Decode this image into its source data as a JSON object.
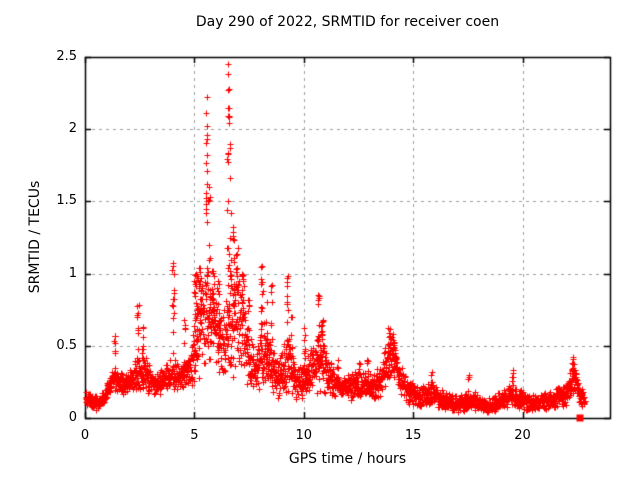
{
  "window": {
    "background": "#ffffff",
    "foreground": "#000000"
  },
  "chart_data": {
    "type": "scatter",
    "title": "Day 290 of 2022, SRMTID for receiver coen",
    "xlabel": "GPS time / hours",
    "ylabel": "SRMTID / TECUs",
    "xlim": [
      0,
      24
    ],
    "ylim": [
      0,
      2.5
    ],
    "xticks": [
      0,
      5,
      10,
      15,
      20
    ],
    "yticks": [
      0,
      0.5,
      1,
      1.5,
      2,
      2.5
    ],
    "grid": {
      "show": true,
      "style": "dashed",
      "color": "#a0a0a0"
    },
    "border_color": "#000000",
    "legend": "none",
    "marker": {
      "glyph": "plus",
      "color": "#ff0000",
      "size": 6
    },
    "description": "Dense time series of SRMTID values sampled through the day; quiet baseline ~0.1-0.3 TECUs with wave activity bursts between 5 and 11 hours peaking at 2.43 TECUs near 6.6 h, a secondary peak ~0.6 near 14 h, and a quiet tail after 15 h.",
    "sampling": {
      "seed": 20220290,
      "samples_per_hour": 110,
      "x_start": 0.03,
      "x_end": 22.85
    },
    "envelope_keyframes": [
      [
        0.0,
        0.14,
        0.06
      ],
      [
        0.3,
        0.12,
        0.06
      ],
      [
        0.6,
        0.09,
        0.05
      ],
      [
        0.9,
        0.16,
        0.07
      ],
      [
        1.2,
        0.24,
        0.1
      ],
      [
        1.5,
        0.27,
        0.1
      ],
      [
        1.8,
        0.22,
        0.08
      ],
      [
        2.1,
        0.26,
        0.09
      ],
      [
        2.4,
        0.31,
        0.13
      ],
      [
        2.7,
        0.33,
        0.14
      ],
      [
        3.0,
        0.25,
        0.1
      ],
      [
        3.3,
        0.22,
        0.09
      ],
      [
        3.6,
        0.28,
        0.1
      ],
      [
        3.9,
        0.3,
        0.12
      ],
      [
        4.2,
        0.31,
        0.12
      ],
      [
        4.5,
        0.3,
        0.1
      ],
      [
        4.8,
        0.35,
        0.14
      ],
      [
        5.1,
        0.55,
        0.35
      ],
      [
        5.4,
        0.7,
        0.33
      ],
      [
        5.7,
        0.72,
        0.35
      ],
      [
        6.0,
        0.6,
        0.3
      ],
      [
        6.3,
        0.5,
        0.28
      ],
      [
        6.6,
        0.6,
        0.38
      ],
      [
        6.9,
        0.66,
        0.4
      ],
      [
        7.2,
        0.6,
        0.35
      ],
      [
        7.5,
        0.38,
        0.2
      ],
      [
        7.8,
        0.32,
        0.16
      ],
      [
        8.1,
        0.42,
        0.28
      ],
      [
        8.4,
        0.38,
        0.26
      ],
      [
        8.7,
        0.3,
        0.15
      ],
      [
        9.0,
        0.32,
        0.2
      ],
      [
        9.3,
        0.38,
        0.26
      ],
      [
        9.6,
        0.25,
        0.12
      ],
      [
        9.9,
        0.26,
        0.14
      ],
      [
        10.2,
        0.3,
        0.16
      ],
      [
        10.5,
        0.36,
        0.22
      ],
      [
        10.8,
        0.42,
        0.28
      ],
      [
        11.1,
        0.3,
        0.14
      ],
      [
        11.4,
        0.24,
        0.1
      ],
      [
        11.7,
        0.22,
        0.09
      ],
      [
        12.0,
        0.21,
        0.09
      ],
      [
        12.3,
        0.22,
        0.1
      ],
      [
        12.6,
        0.23,
        0.1
      ],
      [
        12.9,
        0.24,
        0.11
      ],
      [
        13.2,
        0.22,
        0.1
      ],
      [
        13.5,
        0.26,
        0.12
      ],
      [
        13.8,
        0.38,
        0.18
      ],
      [
        14.1,
        0.42,
        0.16
      ],
      [
        14.4,
        0.28,
        0.12
      ],
      [
        14.7,
        0.2,
        0.1
      ],
      [
        15.0,
        0.17,
        0.09
      ],
      [
        15.3,
        0.15,
        0.08
      ],
      [
        15.6,
        0.16,
        0.09
      ],
      [
        15.9,
        0.17,
        0.1
      ],
      [
        16.2,
        0.13,
        0.07
      ],
      [
        16.5,
        0.12,
        0.07
      ],
      [
        16.8,
        0.1,
        0.06
      ],
      [
        17.1,
        0.09,
        0.06
      ],
      [
        17.4,
        0.11,
        0.07
      ],
      [
        17.7,
        0.13,
        0.08
      ],
      [
        18.0,
        0.1,
        0.06
      ],
      [
        18.3,
        0.09,
        0.06
      ],
      [
        18.6,
        0.09,
        0.06
      ],
      [
        18.9,
        0.11,
        0.07
      ],
      [
        19.2,
        0.13,
        0.08
      ],
      [
        19.5,
        0.16,
        0.09
      ],
      [
        19.8,
        0.14,
        0.08
      ],
      [
        20.1,
        0.11,
        0.07
      ],
      [
        20.4,
        0.1,
        0.06
      ],
      [
        20.7,
        0.11,
        0.06
      ],
      [
        21.0,
        0.12,
        0.07
      ],
      [
        21.3,
        0.12,
        0.07
      ],
      [
        21.6,
        0.14,
        0.08
      ],
      [
        21.9,
        0.16,
        0.09
      ],
      [
        22.2,
        0.24,
        0.12
      ],
      [
        22.4,
        0.3,
        0.1
      ],
      [
        22.6,
        0.16,
        0.08
      ],
      [
        22.85,
        0.12,
        0.06
      ]
    ],
    "spikes": [
      [
        1.38,
        0.57,
        0.1,
        10
      ],
      [
        2.42,
        0.78,
        0.08,
        10
      ],
      [
        2.66,
        0.63,
        0.08,
        8
      ],
      [
        4.02,
        1.07,
        0.1,
        14
      ],
      [
        4.55,
        0.68,
        0.06,
        6
      ],
      [
        5.08,
        1.0,
        0.2,
        22
      ],
      [
        5.3,
        1.04,
        0.16,
        18
      ],
      [
        5.57,
        2.22,
        0.1,
        20
      ],
      [
        5.68,
        1.6,
        0.08,
        10
      ],
      [
        5.85,
        1.02,
        0.12,
        12
      ],
      [
        6.1,
        0.95,
        0.1,
        10
      ],
      [
        6.55,
        2.45,
        0.1,
        24
      ],
      [
        6.65,
        1.9,
        0.08,
        10
      ],
      [
        6.8,
        1.32,
        0.1,
        12
      ],
      [
        6.95,
        1.18,
        0.1,
        12
      ],
      [
        7.2,
        1.0,
        0.12,
        12
      ],
      [
        7.45,
        0.82,
        0.08,
        8
      ],
      [
        8.08,
        1.05,
        0.1,
        14
      ],
      [
        8.3,
        0.8,
        0.08,
        8
      ],
      [
        8.5,
        0.92,
        0.08,
        10
      ],
      [
        9.25,
        0.98,
        0.1,
        12
      ],
      [
        9.45,
        0.7,
        0.06,
        6
      ],
      [
        10.05,
        0.62,
        0.08,
        8
      ],
      [
        10.65,
        0.85,
        0.1,
        12
      ],
      [
        10.85,
        0.68,
        0.08,
        8
      ],
      [
        11.55,
        0.4,
        0.06,
        5
      ],
      [
        12.55,
        0.38,
        0.06,
        5
      ],
      [
        12.9,
        0.4,
        0.06,
        5
      ],
      [
        13.9,
        0.62,
        0.14,
        14
      ],
      [
        14.1,
        0.58,
        0.1,
        10
      ],
      [
        15.85,
        0.32,
        0.06,
        5
      ],
      [
        17.55,
        0.3,
        0.06,
        5
      ],
      [
        19.55,
        0.33,
        0.06,
        6
      ],
      [
        22.3,
        0.42,
        0.08,
        8
      ]
    ],
    "extra_points": [
      [
        22.58,
        0.2
      ],
      [
        22.6,
        0.15
      ],
      [
        22.62,
        0.12
      ],
      [
        22.66,
        0.1
      ],
      [
        22.7,
        0.08
      ]
    ],
    "outlier_square": {
      "x": 22.65,
      "y": 0.0,
      "size": 7
    }
  }
}
